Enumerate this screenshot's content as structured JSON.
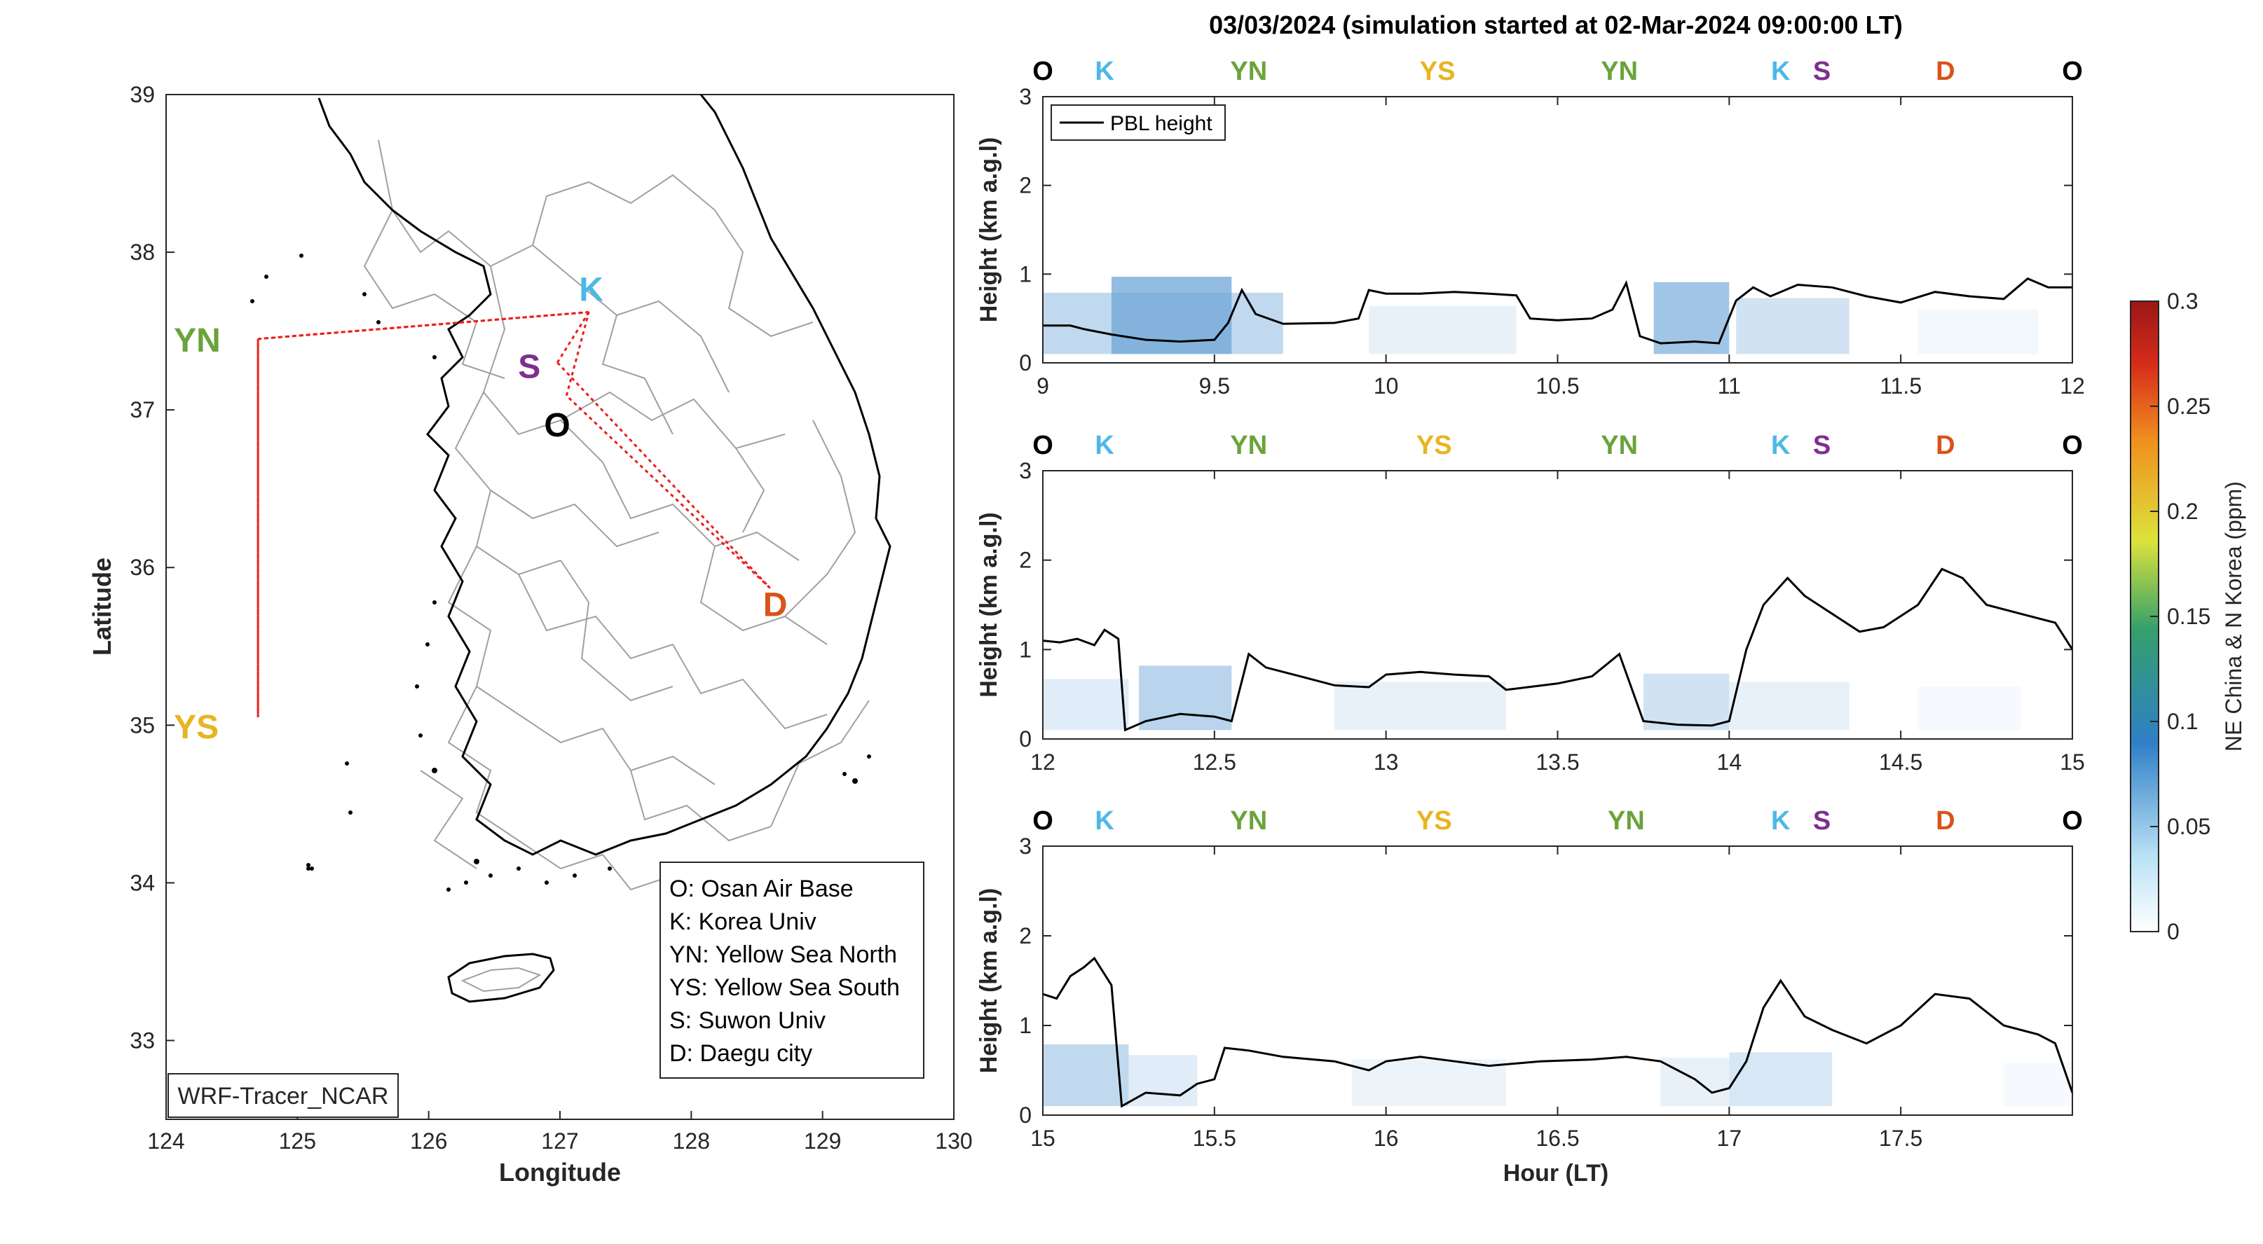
{
  "figure": {
    "title": "03/03/2024 (simulation started at 02-Mar-2024 09:00:00 LT)",
    "legend_label": "PBL height",
    "x_axis_label": "Hour (LT)",
    "y_axis_label": "Height (km a.g.l)",
    "colorbar_label": "NE China & N Korea (ppm)"
  },
  "colors": {
    "O": "#000000",
    "K": "#4db8e8",
    "YN": "#6aa33a",
    "YS": "#e8b420",
    "S": "#7e2f8e",
    "D": "#d95319",
    "path": "#e8201c",
    "land_outline": "#000000",
    "district_lines": "#9a9a9a"
  },
  "map": {
    "xlabel": "Longitude",
    "ylabel": "Latitude",
    "xlim": [
      124,
      130
    ],
    "ylim": [
      32.5,
      39
    ],
    "xticks": [
      "124",
      "125",
      "126",
      "127",
      "128",
      "129",
      "130"
    ],
    "yticks": [
      "33",
      "34",
      "35",
      "36",
      "37",
      "38",
      "39"
    ],
    "model_label": "WRF-Tracer_NCAR",
    "sites": [
      {
        "code": "K",
        "lon": 127.22,
        "lat": 37.62
      },
      {
        "code": "S",
        "lon": 126.98,
        "lat": 37.3
      },
      {
        "code": "O",
        "lon": 127.05,
        "lat": 37.09
      },
      {
        "code": "D",
        "lon": 128.6,
        "lat": 35.87
      },
      {
        "code": "YN",
        "lon": 124.7,
        "lat": 37.45
      },
      {
        "code": "YS",
        "lon": 124.7,
        "lat": 35.05
      }
    ],
    "legend": [
      "O: Osan Air Base",
      "K: Korea Univ",
      "YN: Yellow Sea North",
      "YS: Yellow Sea South",
      "S: Suwon Univ",
      "D: Daegu city"
    ]
  },
  "chart_data": [
    {
      "type": "line",
      "series_name": "PBL height",
      "xlim": [
        9,
        12
      ],
      "ylim": [
        0,
        3
      ],
      "xticks": [
        "9",
        "9.5",
        "10",
        "10.5",
        "11",
        "11.5",
        "12"
      ],
      "yticks": [
        "0",
        "1",
        "2",
        "3"
      ],
      "site_markers": [
        {
          "code": "O",
          "x": 9.0
        },
        {
          "code": "K",
          "x": 9.18
        },
        {
          "code": "YN",
          "x": 9.6
        },
        {
          "code": "YS",
          "x": 10.15
        },
        {
          "code": "YN",
          "x": 10.68
        },
        {
          "code": "K",
          "x": 11.15
        },
        {
          "code": "S",
          "x": 11.27
        },
        {
          "code": "D",
          "x": 11.63
        },
        {
          "code": "O",
          "x": 12.0
        }
      ],
      "pbl": [
        [
          9,
          0.42
        ],
        [
          9.08,
          0.42
        ],
        [
          9.12,
          0.38
        ],
        [
          9.2,
          0.32
        ],
        [
          9.3,
          0.26
        ],
        [
          9.4,
          0.24
        ],
        [
          9.5,
          0.26
        ],
        [
          9.54,
          0.45
        ],
        [
          9.58,
          0.82
        ],
        [
          9.62,
          0.55
        ],
        [
          9.7,
          0.44
        ],
        [
          9.85,
          0.45
        ],
        [
          9.92,
          0.5
        ],
        [
          9.95,
          0.82
        ],
        [
          10.0,
          0.78
        ],
        [
          10.1,
          0.78
        ],
        [
          10.2,
          0.8
        ],
        [
          10.3,
          0.78
        ],
        [
          10.38,
          0.76
        ],
        [
          10.42,
          0.5
        ],
        [
          10.5,
          0.48
        ],
        [
          10.6,
          0.5
        ],
        [
          10.66,
          0.6
        ],
        [
          10.7,
          0.9
        ],
        [
          10.74,
          0.3
        ],
        [
          10.8,
          0.22
        ],
        [
          10.9,
          0.24
        ],
        [
          10.97,
          0.22
        ],
        [
          11.02,
          0.7
        ],
        [
          11.07,
          0.85
        ],
        [
          11.12,
          0.75
        ],
        [
          11.2,
          0.88
        ],
        [
          11.3,
          0.85
        ],
        [
          11.4,
          0.75
        ],
        [
          11.5,
          0.68
        ],
        [
          11.6,
          0.8
        ],
        [
          11.7,
          0.75
        ],
        [
          11.8,
          0.72
        ],
        [
          11.87,
          0.95
        ],
        [
          11.93,
          0.85
        ],
        [
          12.0,
          0.85
        ]
      ],
      "tracer": [
        [
          9.0,
          9.7,
          0.04
        ],
        [
          9.2,
          9.55,
          0.07
        ],
        [
          9.95,
          10.38,
          0.015
        ],
        [
          10.78,
          11.0,
          0.06
        ],
        [
          11.02,
          11.35,
          0.03
        ],
        [
          11.55,
          11.9,
          0.008
        ]
      ]
    },
    {
      "type": "line",
      "series_name": "PBL height",
      "xlim": [
        12,
        15
      ],
      "ylim": [
        0,
        3
      ],
      "xticks": [
        "12",
        "12.5",
        "13",
        "13.5",
        "14",
        "14.5",
        "15"
      ],
      "yticks": [
        "0",
        "1",
        "2",
        "3"
      ],
      "site_markers": [
        {
          "code": "O",
          "x": 12.0
        },
        {
          "code": "K",
          "x": 12.18
        },
        {
          "code": "YN",
          "x": 12.6
        },
        {
          "code": "YS",
          "x": 13.14
        },
        {
          "code": "YN",
          "x": 13.68
        },
        {
          "code": "K",
          "x": 14.15
        },
        {
          "code": "S",
          "x": 14.27
        },
        {
          "code": "D",
          "x": 14.63
        },
        {
          "code": "O",
          "x": 15.0
        }
      ],
      "pbl": [
        [
          12,
          1.1
        ],
        [
          12.05,
          1.08
        ],
        [
          12.1,
          1.12
        ],
        [
          12.15,
          1.05
        ],
        [
          12.18,
          1.22
        ],
        [
          12.22,
          1.12
        ],
        [
          12.24,
          0.1
        ],
        [
          12.3,
          0.2
        ],
        [
          12.4,
          0.28
        ],
        [
          12.5,
          0.25
        ],
        [
          12.55,
          0.2
        ],
        [
          12.6,
          0.95
        ],
        [
          12.65,
          0.8
        ],
        [
          12.75,
          0.7
        ],
        [
          12.85,
          0.6
        ],
        [
          12.95,
          0.58
        ],
        [
          13.0,
          0.72
        ],
        [
          13.1,
          0.75
        ],
        [
          13.2,
          0.72
        ],
        [
          13.3,
          0.7
        ],
        [
          13.35,
          0.55
        ],
        [
          13.5,
          0.62
        ],
        [
          13.6,
          0.7
        ],
        [
          13.68,
          0.95
        ],
        [
          13.75,
          0.2
        ],
        [
          13.85,
          0.16
        ],
        [
          13.95,
          0.15
        ],
        [
          14.0,
          0.2
        ],
        [
          14.05,
          1.0
        ],
        [
          14.1,
          1.5
        ],
        [
          14.17,
          1.8
        ],
        [
          14.22,
          1.6
        ],
        [
          14.3,
          1.4
        ],
        [
          14.38,
          1.2
        ],
        [
          14.45,
          1.25
        ],
        [
          14.55,
          1.5
        ],
        [
          14.62,
          1.9
        ],
        [
          14.68,
          1.8
        ],
        [
          14.75,
          1.5
        ],
        [
          14.85,
          1.4
        ],
        [
          14.95,
          1.3
        ],
        [
          15.0,
          1.0
        ]
      ],
      "tracer": [
        [
          12.0,
          12.25,
          0.02
        ],
        [
          12.28,
          12.55,
          0.045
        ],
        [
          12.85,
          13.35,
          0.015
        ],
        [
          13.75,
          14.0,
          0.03
        ],
        [
          14.0,
          14.35,
          0.015
        ],
        [
          14.55,
          14.85,
          0.006
        ]
      ]
    },
    {
      "type": "line",
      "series_name": "PBL height",
      "xlim": [
        15,
        18
      ],
      "ylim": [
        0,
        3
      ],
      "xticks": [
        "15",
        "15.5",
        "16",
        "16.5",
        "17",
        "17.5"
      ],
      "yticks": [
        "0",
        "1",
        "2",
        "3"
      ],
      "site_markers": [
        {
          "code": "O",
          "x": 15.0
        },
        {
          "code": "K",
          "x": 15.18
        },
        {
          "code": "YN",
          "x": 15.6
        },
        {
          "code": "YS",
          "x": 16.14
        },
        {
          "code": "YN",
          "x": 16.7
        },
        {
          "code": "K",
          "x": 17.15
        },
        {
          "code": "S",
          "x": 17.27
        },
        {
          "code": "D",
          "x": 17.63
        },
        {
          "code": "O",
          "x": 18.0
        }
      ],
      "pbl": [
        [
          15.0,
          1.35
        ],
        [
          15.04,
          1.3
        ],
        [
          15.08,
          1.55
        ],
        [
          15.12,
          1.65
        ],
        [
          15.15,
          1.75
        ],
        [
          15.2,
          1.45
        ],
        [
          15.23,
          0.1
        ],
        [
          15.3,
          0.25
        ],
        [
          15.4,
          0.22
        ],
        [
          15.45,
          0.35
        ],
        [
          15.5,
          0.4
        ],
        [
          15.53,
          0.75
        ],
        [
          15.6,
          0.72
        ],
        [
          15.7,
          0.65
        ],
        [
          15.85,
          0.6
        ],
        [
          15.95,
          0.5
        ],
        [
          16.0,
          0.6
        ],
        [
          16.1,
          0.65
        ],
        [
          16.2,
          0.6
        ],
        [
          16.3,
          0.55
        ],
        [
          16.45,
          0.6
        ],
        [
          16.6,
          0.62
        ],
        [
          16.7,
          0.65
        ],
        [
          16.8,
          0.6
        ],
        [
          16.9,
          0.4
        ],
        [
          16.95,
          0.25
        ],
        [
          17.0,
          0.3
        ],
        [
          17.05,
          0.6
        ],
        [
          17.1,
          1.2
        ],
        [
          17.15,
          1.5
        ],
        [
          17.22,
          1.1
        ],
        [
          17.3,
          0.95
        ],
        [
          17.4,
          0.8
        ],
        [
          17.5,
          1.0
        ],
        [
          17.6,
          1.35
        ],
        [
          17.7,
          1.3
        ],
        [
          17.8,
          1.0
        ],
        [
          17.9,
          0.9
        ],
        [
          17.95,
          0.8
        ],
        [
          18.0,
          0.25
        ]
      ],
      "tracer": [
        [
          15.0,
          15.25,
          0.04
        ],
        [
          15.25,
          15.45,
          0.02
        ],
        [
          15.9,
          16.35,
          0.012
        ],
        [
          16.8,
          17.0,
          0.015
        ],
        [
          17.0,
          17.3,
          0.025
        ],
        [
          17.8,
          18.0,
          0.006
        ]
      ]
    },
    {
      "type": "heatmap",
      "role": "colorbar",
      "label": "NE China & N Korea (ppm)",
      "range": [
        0,
        0.3
      ],
      "ticks": [
        "0",
        "0.05",
        "0.1",
        "0.15",
        "0.2",
        "0.25",
        "0.3"
      ]
    }
  ]
}
